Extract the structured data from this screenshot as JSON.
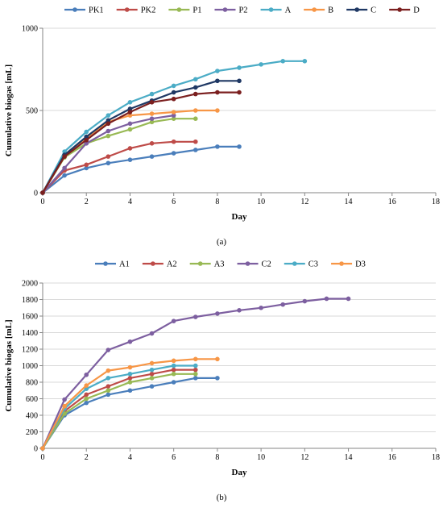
{
  "chart_data": [
    {
      "type": "line",
      "panel_label": "(a)",
      "xlabel": "Day",
      "ylabel": "Cumulative biogas [mL]",
      "xlim": [
        0,
        18
      ],
      "ylim": [
        0,
        1000
      ],
      "x_ticks": [
        0,
        2,
        4,
        6,
        8,
        10,
        12,
        14,
        16,
        18
      ],
      "y_ticks": [
        0,
        500,
        1000
      ],
      "grid": "horizontal",
      "legend_position": "top",
      "series": [
        {
          "name": "PK1",
          "color": "#4a7ebb",
          "x": [
            0,
            1,
            2,
            3,
            4,
            5,
            6,
            7,
            8,
            9
          ],
          "y": [
            0,
            105,
            150,
            180,
            200,
            220,
            240,
            260,
            280,
            280
          ]
        },
        {
          "name": "PK2",
          "color": "#be4b48",
          "x": [
            0,
            1,
            2,
            3,
            4,
            5,
            6,
            7
          ],
          "y": [
            0,
            135,
            170,
            220,
            270,
            300,
            310,
            310
          ]
        },
        {
          "name": "P1",
          "color": "#98b954",
          "x": [
            0,
            1,
            2,
            3,
            4,
            5,
            6,
            7
          ],
          "y": [
            0,
            215,
            300,
            345,
            385,
            430,
            450,
            450
          ]
        },
        {
          "name": "P2",
          "color": "#7d5fa0",
          "x": [
            0,
            1,
            2,
            3,
            4,
            5,
            6
          ],
          "y": [
            0,
            150,
            300,
            375,
            420,
            450,
            470
          ]
        },
        {
          "name": "A",
          "color": "#4bacc6",
          "x": [
            0,
            1,
            2,
            3,
            4,
            5,
            6,
            7,
            8,
            9,
            10,
            11,
            12
          ],
          "y": [
            0,
            250,
            370,
            470,
            550,
            600,
            650,
            690,
            740,
            760,
            780,
            800,
            800
          ]
        },
        {
          "name": "B",
          "color": "#f79646",
          "x": [
            0,
            1,
            2,
            3,
            4,
            5,
            6,
            7,
            8
          ],
          "y": [
            0,
            220,
            330,
            430,
            470,
            480,
            490,
            500,
            500
          ]
        },
        {
          "name": "C",
          "color": "#1f3864",
          "x": [
            0,
            1,
            2,
            3,
            4,
            5,
            6,
            7,
            8,
            9
          ],
          "y": [
            0,
            230,
            340,
            440,
            510,
            560,
            610,
            640,
            680,
            680
          ]
        },
        {
          "name": "D",
          "color": "#7b1f1f",
          "x": [
            0,
            1,
            2,
            3,
            4,
            5,
            6,
            7,
            8,
            9
          ],
          "y": [
            0,
            220,
            320,
            420,
            490,
            550,
            570,
            600,
            610,
            610
          ]
        }
      ]
    },
    {
      "type": "line",
      "panel_label": "(b)",
      "xlabel": "Day",
      "ylabel": "Cumulative biogas [mL]",
      "xlim": [
        0,
        18
      ],
      "ylim": [
        0,
        2000
      ],
      "x_ticks": [
        0,
        2,
        4,
        6,
        8,
        10,
        12,
        14,
        16,
        18
      ],
      "y_ticks": [
        0,
        200,
        400,
        600,
        800,
        1000,
        1200,
        1400,
        1600,
        1800,
        2000
      ],
      "grid": "horizontal",
      "legend_position": "top",
      "series": [
        {
          "name": "A1",
          "color": "#4a7ebb",
          "x": [
            0,
            1,
            2,
            3,
            4,
            5,
            6,
            7,
            8
          ],
          "y": [
            0,
            400,
            550,
            650,
            700,
            750,
            800,
            850,
            850
          ]
        },
        {
          "name": "A2",
          "color": "#be4b48",
          "x": [
            0,
            1,
            2,
            3,
            4,
            5,
            6,
            7
          ],
          "y": [
            0,
            450,
            650,
            750,
            850,
            900,
            950,
            950
          ]
        },
        {
          "name": "A3",
          "color": "#98b954",
          "x": [
            0,
            1,
            2,
            3,
            4,
            5,
            6,
            7
          ],
          "y": [
            0,
            420,
            600,
            700,
            800,
            850,
            900,
            900
          ]
        },
        {
          "name": "C2",
          "color": "#7d5fa0",
          "x": [
            0,
            1,
            2,
            3,
            4,
            5,
            6,
            7,
            8,
            9,
            10,
            11,
            12,
            13,
            14
          ],
          "y": [
            0,
            590,
            890,
            1190,
            1290,
            1390,
            1540,
            1590,
            1630,
            1670,
            1700,
            1740,
            1780,
            1810,
            1810
          ]
        },
        {
          "name": "C3",
          "color": "#4bacc6",
          "x": [
            0,
            1,
            2,
            3,
            4,
            5,
            6,
            7
          ],
          "y": [
            0,
            480,
            720,
            850,
            900,
            950,
            1000,
            1000
          ]
        },
        {
          "name": "D3",
          "color": "#f79646",
          "x": [
            0,
            1,
            2,
            3,
            4,
            5,
            6,
            7,
            8
          ],
          "y": [
            0,
            510,
            760,
            940,
            980,
            1030,
            1060,
            1080,
            1080
          ]
        }
      ]
    }
  ]
}
